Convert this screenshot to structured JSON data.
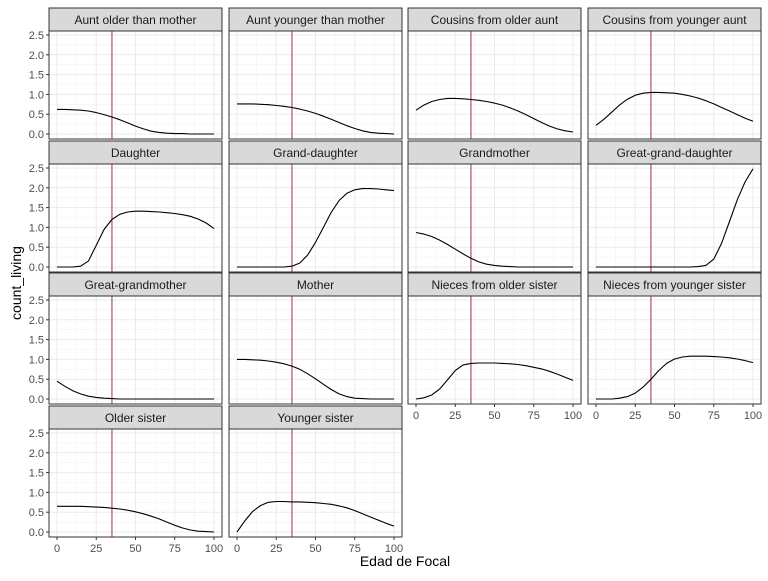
{
  "chart_data": {
    "type": "line",
    "layout": "facet-wrap",
    "ncol": 4,
    "xlabel": "Edad de Focal",
    "ylabel": "count_living",
    "xlim": [
      0,
      100
    ],
    "ylim": [
      0,
      2.5
    ],
    "xticks": [
      "0",
      "25",
      "50",
      "75",
      "100"
    ],
    "yticks": [
      "0.0",
      "0.5",
      "1.0",
      "1.5",
      "2.0",
      "2.5"
    ],
    "reference_line": {
      "x": 35,
      "color": "#a0304a"
    },
    "line_color": "#000000",
    "x": [
      0,
      5,
      10,
      15,
      20,
      25,
      30,
      35,
      40,
      45,
      50,
      55,
      60,
      65,
      70,
      75,
      80,
      85,
      90,
      95,
      100
    ],
    "panels": [
      {
        "label": "Aunt older than mother",
        "values": [
          0.62,
          0.62,
          0.61,
          0.6,
          0.58,
          0.54,
          0.49,
          0.43,
          0.36,
          0.28,
          0.2,
          0.13,
          0.07,
          0.04,
          0.02,
          0.01,
          0.01,
          0.0,
          0.0,
          0.0,
          0.0
        ]
      },
      {
        "label": "Aunt younger than mother",
        "values": [
          0.76,
          0.76,
          0.76,
          0.75,
          0.74,
          0.72,
          0.7,
          0.67,
          0.63,
          0.58,
          0.52,
          0.45,
          0.37,
          0.29,
          0.21,
          0.14,
          0.08,
          0.04,
          0.02,
          0.01,
          0.0
        ]
      },
      {
        "label": "Cousins from older aunt",
        "values": [
          0.6,
          0.73,
          0.82,
          0.87,
          0.9,
          0.9,
          0.89,
          0.87,
          0.85,
          0.82,
          0.78,
          0.73,
          0.66,
          0.58,
          0.49,
          0.39,
          0.29,
          0.2,
          0.13,
          0.08,
          0.05
        ]
      },
      {
        "label": "Cousins from younger aunt",
        "values": [
          0.22,
          0.37,
          0.55,
          0.73,
          0.88,
          0.98,
          1.03,
          1.05,
          1.05,
          1.04,
          1.03,
          1.0,
          0.96,
          0.91,
          0.84,
          0.76,
          0.67,
          0.58,
          0.49,
          0.4,
          0.32
        ]
      },
      {
        "label": "Daughter",
        "values": [
          0.0,
          0.0,
          0.0,
          0.02,
          0.15,
          0.55,
          0.95,
          1.2,
          1.33,
          1.39,
          1.41,
          1.41,
          1.4,
          1.39,
          1.37,
          1.35,
          1.32,
          1.28,
          1.21,
          1.11,
          0.97
        ]
      },
      {
        "label": "Grand-daughter",
        "values": [
          0.0,
          0.0,
          0.0,
          0.0,
          0.0,
          0.0,
          0.0,
          0.02,
          0.1,
          0.3,
          0.62,
          1.0,
          1.38,
          1.68,
          1.86,
          1.95,
          1.98,
          1.98,
          1.97,
          1.95,
          1.93
        ]
      },
      {
        "label": "Grandmother",
        "values": [
          0.87,
          0.83,
          0.77,
          0.68,
          0.57,
          0.45,
          0.33,
          0.22,
          0.13,
          0.07,
          0.04,
          0.02,
          0.01,
          0.0,
          0.0,
          0.0,
          0.0,
          0.0,
          0.0,
          0.0,
          0.0
        ]
      },
      {
        "label": "Great-grand-daughter",
        "values": [
          0.0,
          0.0,
          0.0,
          0.0,
          0.0,
          0.0,
          0.0,
          0.0,
          0.0,
          0.0,
          0.0,
          0.0,
          0.0,
          0.01,
          0.04,
          0.2,
          0.6,
          1.15,
          1.7,
          2.15,
          2.48
        ]
      },
      {
        "label": "Great-grandmother",
        "values": [
          0.45,
          0.32,
          0.21,
          0.13,
          0.07,
          0.04,
          0.02,
          0.01,
          0.0,
          0.0,
          0.0,
          0.0,
          0.0,
          0.0,
          0.0,
          0.0,
          0.0,
          0.0,
          0.0,
          0.0,
          0.0
        ]
      },
      {
        "label": "Mother",
        "values": [
          1.0,
          1.0,
          0.99,
          0.98,
          0.96,
          0.93,
          0.89,
          0.83,
          0.75,
          0.64,
          0.51,
          0.37,
          0.24,
          0.13,
          0.06,
          0.02,
          0.01,
          0.0,
          0.0,
          0.0,
          0.0
        ]
      },
      {
        "label": "Nieces from older sister",
        "values": [
          0.0,
          0.03,
          0.1,
          0.25,
          0.48,
          0.72,
          0.86,
          0.9,
          0.91,
          0.91,
          0.91,
          0.9,
          0.89,
          0.87,
          0.84,
          0.8,
          0.76,
          0.7,
          0.63,
          0.55,
          0.47
        ]
      },
      {
        "label": "Nieces from younger sister",
        "values": [
          0.0,
          0.0,
          0.0,
          0.02,
          0.06,
          0.15,
          0.3,
          0.5,
          0.72,
          0.9,
          1.01,
          1.06,
          1.08,
          1.08,
          1.08,
          1.07,
          1.06,
          1.04,
          1.01,
          0.97,
          0.92
        ]
      },
      {
        "label": "Older sister",
        "values": [
          0.65,
          0.65,
          0.65,
          0.65,
          0.64,
          0.63,
          0.62,
          0.6,
          0.58,
          0.55,
          0.51,
          0.46,
          0.4,
          0.33,
          0.25,
          0.17,
          0.1,
          0.05,
          0.02,
          0.01,
          0.0
        ]
      },
      {
        "label": "Younger sister",
        "values": [
          0.0,
          0.28,
          0.52,
          0.67,
          0.75,
          0.77,
          0.77,
          0.76,
          0.76,
          0.75,
          0.74,
          0.72,
          0.7,
          0.66,
          0.61,
          0.54,
          0.46,
          0.38,
          0.3,
          0.22,
          0.15
        ]
      }
    ]
  }
}
